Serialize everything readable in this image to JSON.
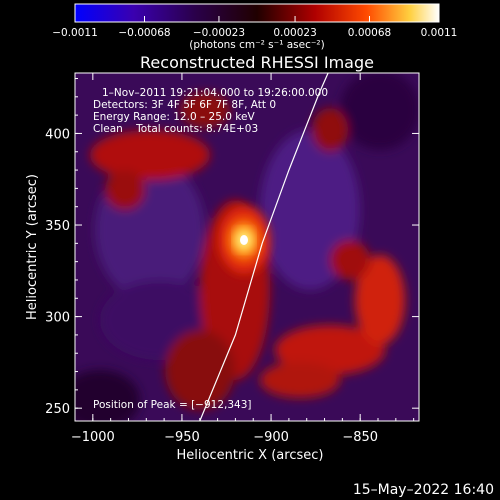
{
  "chart_data": {
    "type": "heatmap",
    "title": "Reconstructed RHESSI Image",
    "xlabel": "Heliocentric X (arcsec)",
    "ylabel": "Heliocentric Y (arcsec)",
    "xlim": [
      -1010,
      -817
    ],
    "ylim": [
      243,
      433
    ],
    "x_ticks": [
      -1000,
      -950,
      -900,
      -850
    ],
    "y_ticks": [
      250,
      300,
      350,
      400
    ],
    "colorbar": {
      "range": [
        -0.0011,
        0.0011
      ],
      "tick_values": [
        -0.0011,
        -0.00068,
        -0.00023,
        0.00023,
        0.00068,
        0.0011
      ],
      "tick_labels": [
        "−0.0011",
        "−0.00068",
        "−0.00023",
        "0.00023",
        "0.00068",
        "0.0011"
      ],
      "units": "(photons cm⁻² s⁻¹ asec⁻²)"
    },
    "annotations": {
      "time_range": "1–Nov–2011 19:21:04.000 to 19:26:00.000",
      "detectors": "Detectors: 3F 4F 5F 6F 7F 8F, Att 0",
      "energy": "Energy Range: 12.0 – 25.0 keV",
      "clean_counts": "Clean    Total counts: 8.74E+03",
      "peak": "Position of Peak = [−912,343]"
    },
    "peak_position": [
      -912,
      343
    ],
    "limb_curve": [
      [
        -940,
        243
      ],
      [
        -920,
        290
      ],
      [
        -905,
        340
      ],
      [
        -890,
        380
      ],
      [
        -873,
        422
      ],
      [
        -868,
        433
      ]
    ],
    "colormap": "purple-red-yellow-white",
    "footer_date": "15–May–2022 16:40"
  }
}
